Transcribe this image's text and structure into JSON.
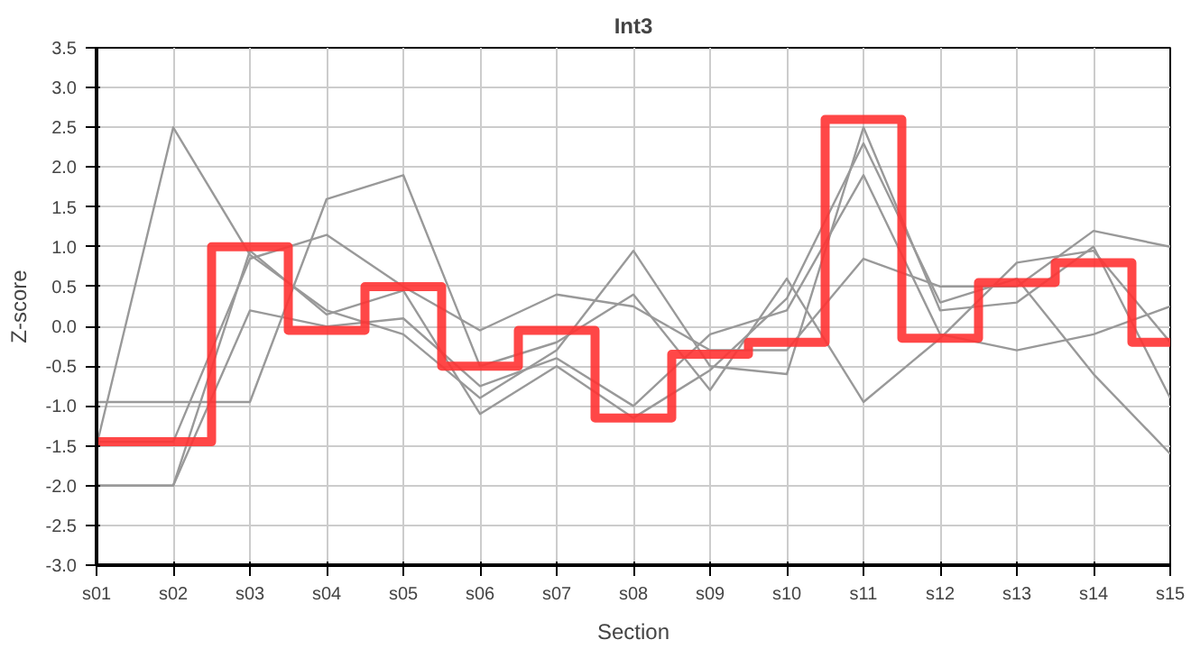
{
  "chart_data": {
    "type": "step",
    "title": "Int3",
    "xlabel": "Section",
    "ylabel": "Z-score",
    "categories": [
      "s01",
      "s02",
      "s03",
      "s04",
      "s05",
      "s06",
      "s07",
      "s08",
      "s09",
      "s10",
      "s11",
      "s12",
      "s13",
      "s14",
      "s15"
    ],
    "ylim": [
      -3,
      3.5
    ],
    "yticks": [
      {
        "value": -3,
        "label": "-3.0"
      },
      {
        "value": -2.5,
        "label": "-2.5"
      },
      {
        "value": -2,
        "label": "-2.0"
      },
      {
        "value": -1.5,
        "label": "-1.5"
      },
      {
        "value": -1,
        "label": "-1.0"
      },
      {
        "value": -0.5,
        "label": "-0.5"
      },
      {
        "value": 0,
        "label": "0.0"
      },
      {
        "value": 0.5,
        "label": "0.5"
      },
      {
        "value": 1,
        "label": "1.0"
      },
      {
        "value": 1.5,
        "label": "1.5"
      },
      {
        "value": 2,
        "label": "2.0"
      },
      {
        "value": 2.5,
        "label": "2.5"
      },
      {
        "value": 3,
        "label": "3.0"
      },
      {
        "value": 3.5,
        "label": "3.5"
      }
    ],
    "grid": true,
    "marker": "none",
    "line_style": "solid",
    "series": [
      {
        "type": "line",
        "color": "#999999",
        "values": [
          -1.5,
          2.5,
          0.9,
          0.2,
          -0.1,
          -0.9,
          -0.3,
          0.95,
          -0.5,
          -0.6,
          2.5,
          0.2,
          0.3,
          1.0,
          -0.9
        ]
      },
      {
        "type": "line",
        "color": "#999999",
        "values": [
          -0.95,
          -0.95,
          -0.95,
          1.6,
          1.9,
          -0.5,
          -0.2,
          0.4,
          -0.8,
          0.6,
          -0.95,
          -0.15,
          0.8,
          0.95,
          -0.2
        ]
      },
      {
        "type": "line",
        "color": "#999999",
        "values": [
          -2.0,
          -2.0,
          0.2,
          0.0,
          0.1,
          -0.75,
          -0.4,
          -1.0,
          -0.1,
          0.2,
          1.9,
          -0.1,
          -0.3,
          -0.1,
          0.25
        ]
      },
      {
        "type": "line",
        "color": "#999999",
        "values": [
          -1.45,
          -1.45,
          0.85,
          1.15,
          0.5,
          -0.05,
          0.4,
          0.25,
          -0.3,
          -0.3,
          0.85,
          0.5,
          0.5,
          1.2,
          1.0
        ]
      },
      {
        "type": "line",
        "color": "#999999",
        "values": [
          -2.0,
          -2.0,
          0.95,
          0.15,
          0.45,
          -1.1,
          -0.5,
          -1.15,
          -0.55,
          0.35,
          2.3,
          0.3,
          0.6,
          -0.6,
          -1.6
        ]
      },
      {
        "color": "#ff3333",
        "values": [
          -1.45,
          -1.45,
          1.0,
          -0.05,
          0.5,
          -0.5,
          -0.05,
          -1.15,
          -0.35,
          -0.2,
          2.6,
          -0.15,
          0.55,
          0.8,
          -0.2
        ]
      }
    ]
  }
}
